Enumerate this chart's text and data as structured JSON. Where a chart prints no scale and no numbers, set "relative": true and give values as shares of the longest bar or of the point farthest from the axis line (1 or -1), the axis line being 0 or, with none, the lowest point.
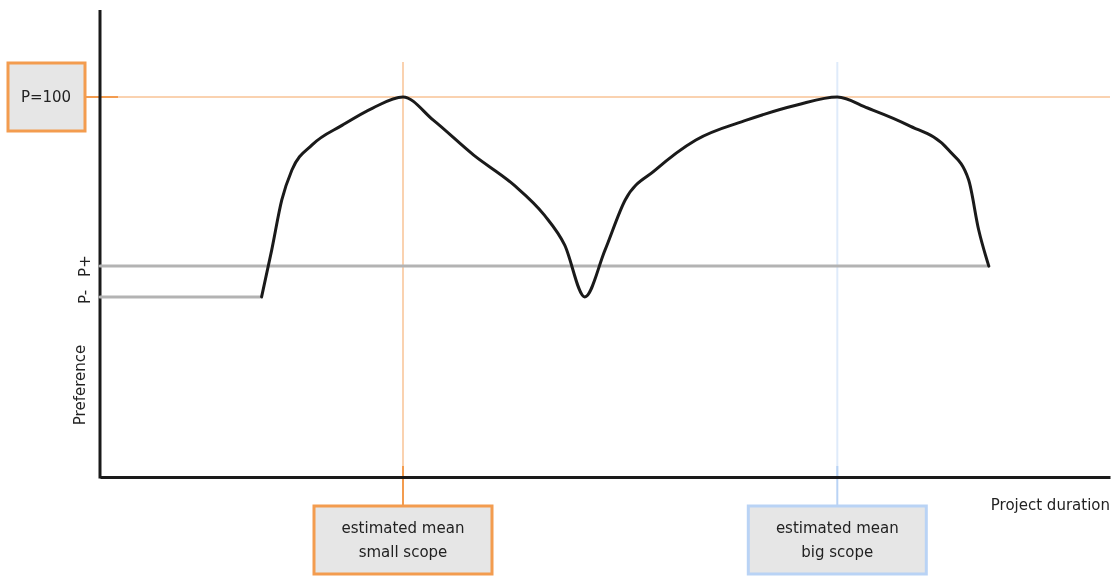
{
  "chart_data": {
    "type": "line",
    "relative": true,
    "xlabel": "Project duration",
    "ylabel": "Preference",
    "categories": [
      null,
      null,
      null,
      null,
      null,
      null,
      null,
      null,
      null,
      null,
      null,
      null,
      null,
      null,
      null,
      null,
      null,
      null,
      null,
      null,
      null,
      null,
      null,
      null,
      null,
      null,
      null,
      null,
      null,
      null,
      null,
      null,
      null,
      null,
      null,
      null,
      null,
      null,
      null,
      null,
      null,
      null,
      null,
      null,
      null,
      null,
      null,
      null,
      null,
      null,
      null,
      null,
      null,
      null,
      null,
      null,
      null,
      null,
      null,
      null,
      null,
      null,
      null,
      null,
      null,
      null,
      null,
      null,
      null,
      null,
      null,
      null,
      null,
      null,
      null,
      null,
      null,
      null,
      null,
      null,
      null,
      null,
      null,
      null,
      null,
      null,
      null,
      null,
      null,
      null,
      null,
      null,
      null,
      null,
      null,
      null,
      null,
      null,
      null,
      null,
      null
    ],
    "series": [
      {
        "name": "P-",
        "color": "#b3b3b3",
        "values": [
          0.474,
          null,
          null,
          null,
          null,
          null,
          null,
          null,
          null,
          null,
          null,
          null,
          null,
          null,
          null,
          null,
          0.474,
          null,
          null,
          null,
          null,
          null,
          null,
          null,
          null,
          null,
          null,
          null,
          null,
          null,
          null,
          null,
          null,
          null,
          null,
          null,
          null,
          null,
          null,
          null,
          null,
          null,
          null,
          null,
          null,
          null,
          null,
          null,
          null,
          null,
          null,
          null,
          null,
          null,
          null,
          null,
          null,
          null,
          null,
          null,
          null,
          null,
          null,
          null,
          null,
          null,
          null,
          null,
          null,
          null,
          null,
          null,
          null,
          null,
          null,
          null,
          null,
          null,
          null,
          null,
          null,
          null,
          null,
          null,
          null,
          null,
          null,
          null,
          null,
          null,
          null,
          null,
          null,
          null,
          null,
          null,
          null,
          null,
          null,
          null,
          null
        ]
      },
      {
        "name": "P+",
        "color": "#b3b3b3",
        "values": [
          0.555,
          null,
          null,
          null,
          null,
          null,
          null,
          null,
          null,
          null,
          null,
          null,
          null,
          null,
          null,
          null,
          null,
          null,
          null,
          null,
          null,
          null,
          null,
          null,
          null,
          null,
          null,
          null,
          null,
          null,
          null,
          null,
          null,
          null,
          null,
          null,
          null,
          null,
          null,
          null,
          null,
          null,
          null,
          null,
          null,
          null,
          null,
          null,
          null,
          null,
          null,
          null,
          null,
          null,
          null,
          null,
          null,
          null,
          null,
          null,
          null,
          null,
          null,
          null,
          null,
          null,
          null,
          null,
          null,
          null,
          null,
          null,
          null,
          null,
          null,
          null,
          null,
          null,
          null,
          null,
          null,
          null,
          null,
          null,
          null,
          null,
          null,
          null,
          0.555,
          null,
          null,
          null,
          null,
          null,
          null,
          null,
          null,
          null,
          null,
          null,
          null
        ]
      },
      {
        "color": "#1a1a1a",
        "values": [
          null,
          null,
          null,
          null,
          null,
          null,
          null,
          null,
          null,
          null,
          null,
          null,
          null,
          null,
          null,
          null,
          0.474,
          0.597,
          0.729,
          0.808,
          null,
          0.874,
          null,
          null,
          0.926,
          null,
          null,
          0.971,
          null,
          null,
          1,
          null,
          null,
          0.939,
          null,
          null,
          null,
          0.847,
          null,
          null,
          null,
          0.768,
          null,
          null,
          0.689,
          null,
          0.611,
          null,
          0.474,
          null,
          0.597,
          null,
          0.729,
          null,
          null,
          0.808,
          null,
          null,
          null,
          0.887,
          null,
          null,
          null,
          null,
          0.939,
          null,
          null,
          null,
          null,
          0.979,
          null,
          null,
          null,
          1,
          null,
          null,
          0.971,
          null,
          null,
          null,
          0.926,
          null,
          null,
          null,
          0.861,
          null,
          0.782,
          0.65,
          0.555,
          null,
          null,
          null,
          null,
          null,
          null,
          null,
          null,
          null,
          null,
          null,
          null
        ]
      }
    ],
    "ref_lines": [
      {
        "axis": "y",
        "value": 1,
        "label": "P=100",
        "color": "#f39c4f"
      }
    ],
    "annotations": [
      "estimated mean small scope",
      "estimated mean big scope"
    ]
  }
}
